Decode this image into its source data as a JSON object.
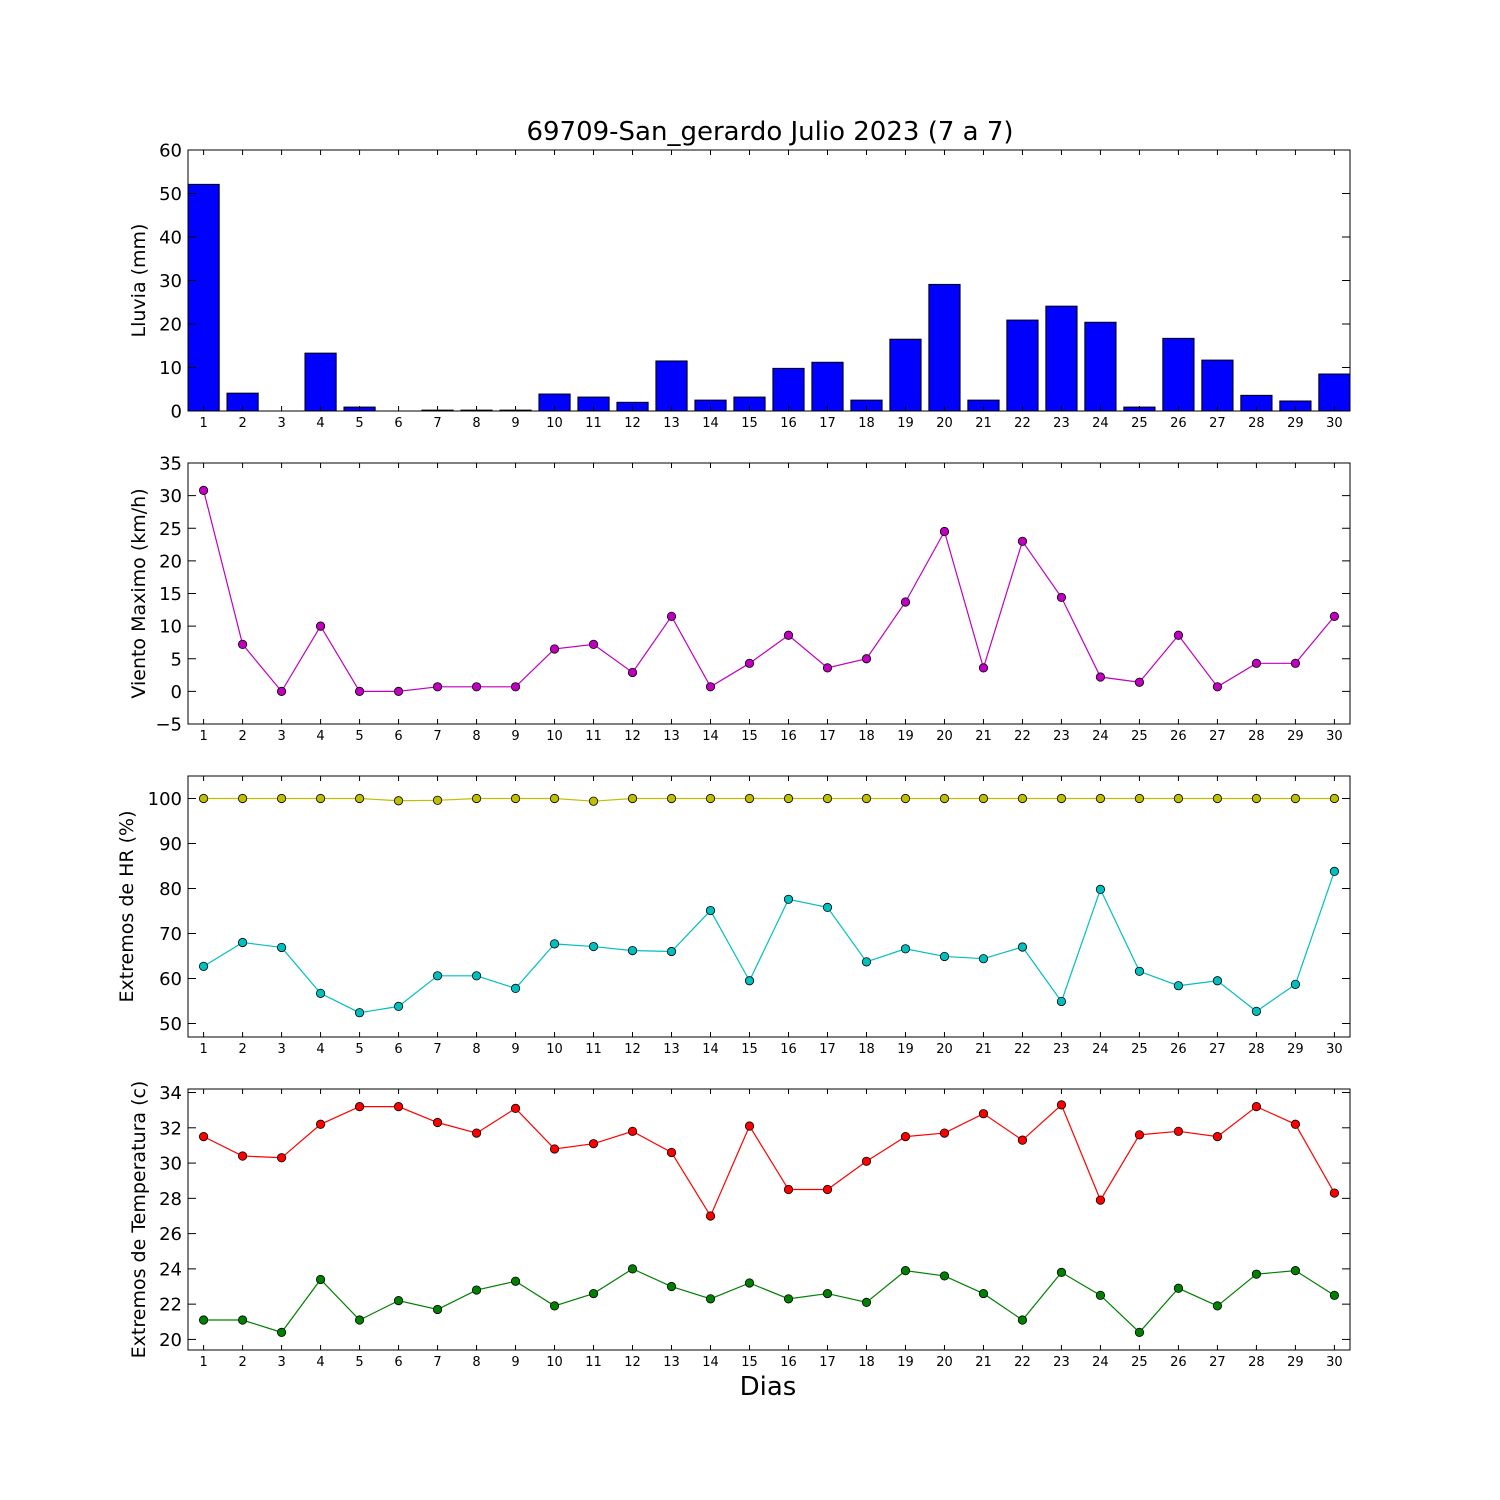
{
  "title": "69709-San_gerardo Julio 2023  (7 a 7)",
  "xlabel": "Dias",
  "chart_data": [
    {
      "type": "bar",
      "ylabel": "Lluvia (mm)",
      "ylim": [
        0,
        60
      ],
      "yticks": [
        0,
        10,
        20,
        30,
        40,
        50,
        60
      ],
      "categories": [
        "1",
        "2",
        "3",
        "4",
        "5",
        "6",
        "7",
        "8",
        "9",
        "10",
        "11",
        "12",
        "13",
        "14",
        "15",
        "16",
        "17",
        "18",
        "19",
        "20",
        "21",
        "22",
        "23",
        "24",
        "25",
        "26",
        "27",
        "28",
        "29",
        "30"
      ],
      "series": [
        {
          "color": "#0000ff",
          "values": [
            52.1,
            4.1,
            0.0,
            13.3,
            0.9,
            0.0,
            0.2,
            0.2,
            0.2,
            3.9,
            3.2,
            2.0,
            11.5,
            2.5,
            3.2,
            9.8,
            11.2,
            2.5,
            16.5,
            29.1,
            2.5,
            20.9,
            24.1,
            20.4,
            0.9,
            16.7,
            11.7,
            3.6,
            2.3,
            8.5
          ]
        }
      ]
    },
    {
      "type": "line",
      "ylabel": "Viento Maximo (km/h)",
      "ylim": [
        -5,
        35
      ],
      "yticks": [
        -5,
        0,
        5,
        10,
        15,
        20,
        25,
        30,
        35
      ],
      "ytick_labels": [
        "−5",
        "0",
        "5",
        "10",
        "15",
        "20",
        "25",
        "30",
        "35"
      ],
      "x": [
        1,
        2,
        3,
        4,
        5,
        6,
        7,
        8,
        9,
        10,
        11,
        12,
        13,
        14,
        15,
        16,
        17,
        18,
        19,
        20,
        21,
        22,
        23,
        24,
        25,
        26,
        27,
        28,
        29,
        30
      ],
      "series": [
        {
          "color": "#bf00bf",
          "values": [
            30.8,
            7.2,
            0.0,
            10.0,
            0.0,
            0.0,
            0.7,
            0.7,
            0.7,
            6.5,
            7.2,
            2.9,
            11.5,
            0.7,
            4.3,
            8.6,
            3.6,
            5.0,
            13.7,
            24.5,
            3.6,
            23.0,
            14.4,
            2.2,
            1.4,
            8.6,
            0.7,
            4.3,
            4.3,
            11.5
          ]
        }
      ]
    },
    {
      "type": "line",
      "ylabel": "Extremos de HR (%)",
      "ylim": [
        47,
        105
      ],
      "yticks": [
        50,
        60,
        70,
        80,
        90,
        100
      ],
      "x": [
        1,
        2,
        3,
        4,
        5,
        6,
        7,
        8,
        9,
        10,
        11,
        12,
        13,
        14,
        15,
        16,
        17,
        18,
        19,
        20,
        21,
        22,
        23,
        24,
        25,
        26,
        27,
        28,
        29,
        30
      ],
      "series": [
        {
          "color": "#bfbf00",
          "values": [
            100,
            100,
            100,
            100,
            100,
            99.5,
            99.6,
            100,
            100,
            100,
            99.4,
            100,
            100,
            100,
            100,
            100,
            100,
            100,
            100,
            100,
            100,
            100,
            100,
            100,
            100,
            100,
            100,
            100,
            100,
            100
          ]
        },
        {
          "color": "#00bfbf",
          "values": [
            62.7,
            68.0,
            66.9,
            56.7,
            52.4,
            53.8,
            60.6,
            60.6,
            57.8,
            67.7,
            67.1,
            66.2,
            66.0,
            75.1,
            59.5,
            77.6,
            75.8,
            63.7,
            66.6,
            64.9,
            64.4,
            67.0,
            54.9,
            79.8,
            61.6,
            58.4,
            59.5,
            52.7,
            58.7,
            83.8
          ]
        }
      ]
    },
    {
      "type": "line",
      "ylabel": "Extremos de Temperatura (c)",
      "ylim": [
        19.4,
        34.2
      ],
      "yticks": [
        20,
        22,
        24,
        26,
        28,
        30,
        32,
        34
      ],
      "x": [
        1,
        2,
        3,
        4,
        5,
        6,
        7,
        8,
        9,
        10,
        11,
        12,
        13,
        14,
        15,
        16,
        17,
        18,
        19,
        20,
        21,
        22,
        23,
        24,
        25,
        26,
        27,
        28,
        29,
        30
      ],
      "series": [
        {
          "color": "#ff0000",
          "values": [
            31.5,
            30.4,
            30.3,
            32.2,
            33.2,
            33.2,
            32.3,
            31.7,
            33.1,
            30.8,
            31.1,
            31.8,
            30.6,
            27.0,
            32.1,
            28.5,
            28.5,
            30.1,
            31.5,
            31.7,
            32.8,
            31.3,
            33.3,
            27.9,
            31.6,
            31.8,
            31.5,
            33.2,
            32.2,
            28.3
          ]
        },
        {
          "color": "#008000",
          "values": [
            21.1,
            21.1,
            20.4,
            23.4,
            21.1,
            22.2,
            21.7,
            22.8,
            23.3,
            21.9,
            22.6,
            24.0,
            23.0,
            22.3,
            23.2,
            22.3,
            22.6,
            22.1,
            23.9,
            23.6,
            22.6,
            21.1,
            23.8,
            22.5,
            20.4,
            22.9,
            21.9,
            23.7,
            23.9,
            22.5
          ]
        }
      ]
    }
  ]
}
